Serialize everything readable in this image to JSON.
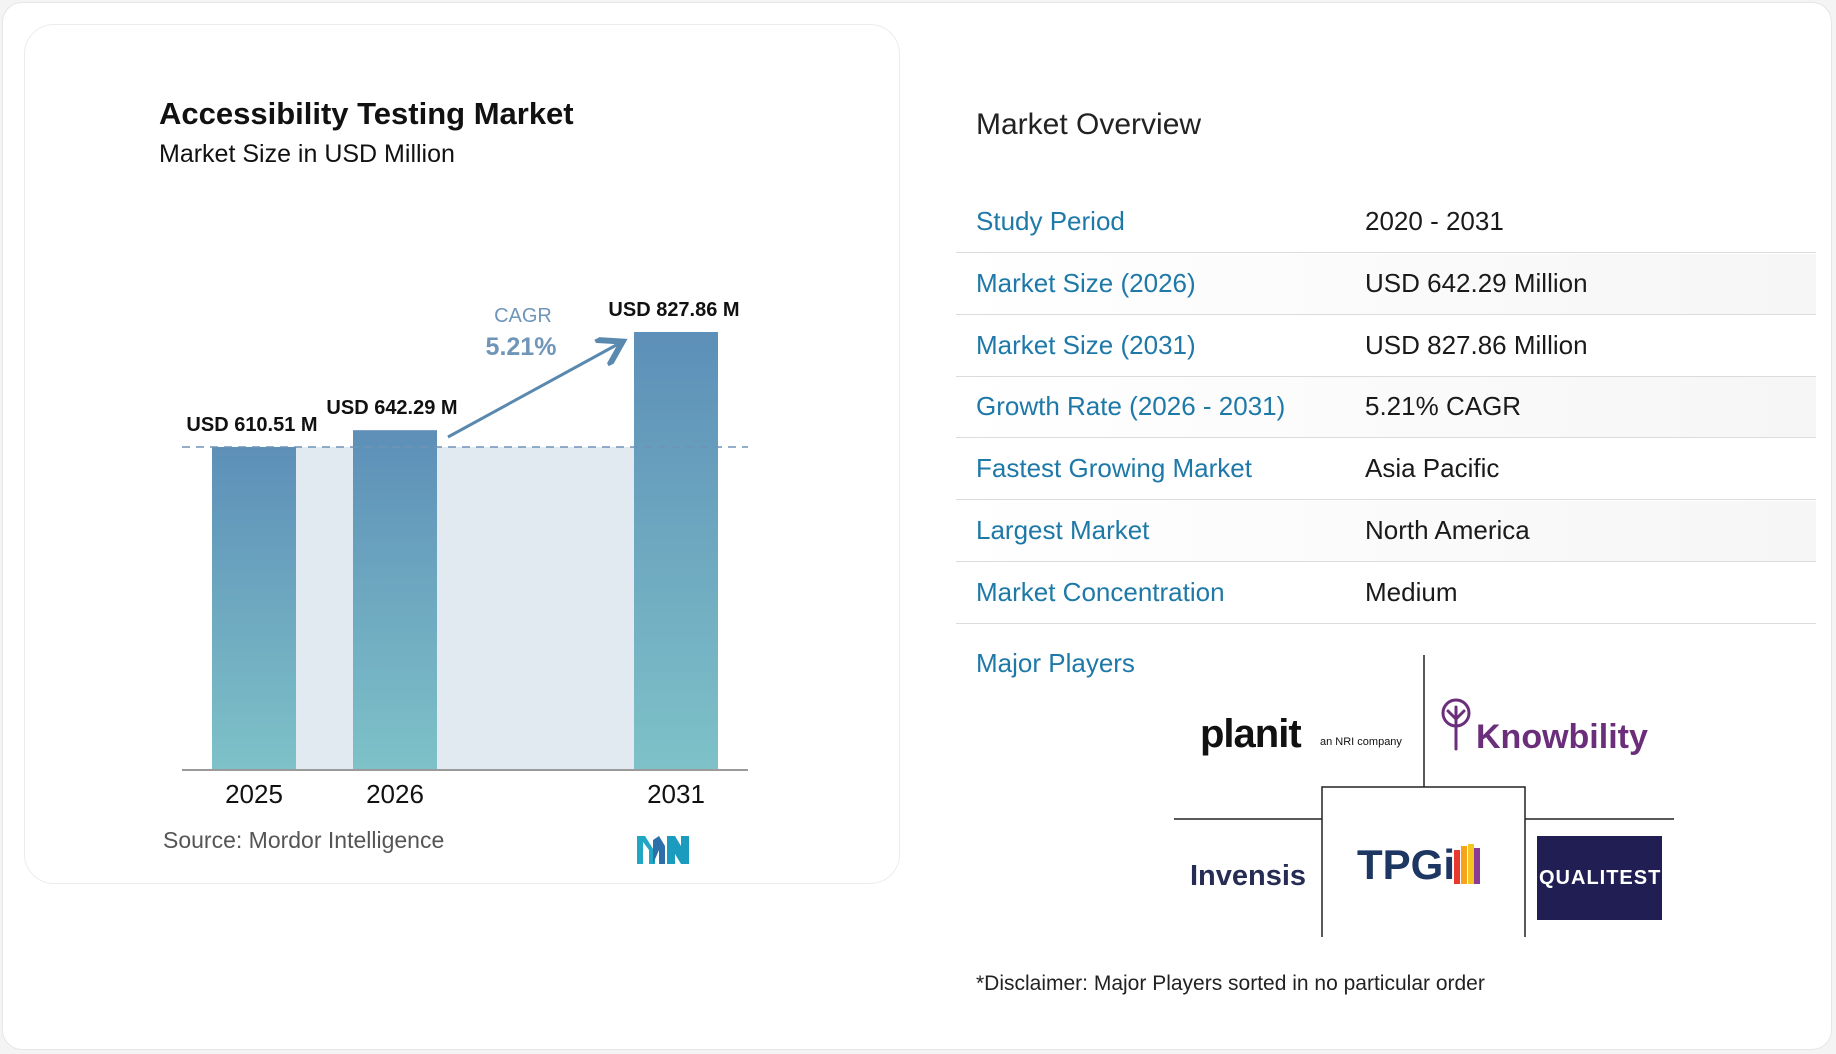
{
  "chart_data": {
    "type": "bar",
    "title": "Accessibility Testing Market",
    "subtitle": "Market Size in USD Million",
    "categories": [
      "2025",
      "2026",
      "2031"
    ],
    "values": [
      610.51,
      642.29,
      827.86
    ],
    "data_labels": [
      "USD 610.51 M",
      "USD 642.29 M",
      "USD 827.86 M"
    ],
    "cagr_label": "CAGR",
    "cagr_value": "5.21%",
    "ylim": [
      0,
      827.86
    ],
    "colors": {
      "bar_top": "#5d8fb8",
      "bar_bottom": "#7ec2c8",
      "band": "#e1e9f1",
      "arrow": "#5a89b0",
      "dashed": "#6f93b5",
      "cagr_text": "#6f96b9"
    }
  },
  "source": "Source:  Mordor Intelligence",
  "logo_icon": "mordor-intelligence-logo",
  "overview": {
    "title": "Market Overview",
    "rows": [
      {
        "label": "Study Period",
        "value": "2020 - 2031"
      },
      {
        "label": "Market Size (2026)",
        "value": "USD 642.29 Million"
      },
      {
        "label": "Market Size (2031)",
        "value": "USD 827.86 Million"
      },
      {
        "label": "Growth Rate (2026 - 2031)",
        "value": "5.21% CAGR"
      },
      {
        "label": "Fastest Growing Market",
        "value": "Asia Pacific"
      },
      {
        "label": "Largest Market",
        "value": "North America"
      },
      {
        "label": "Market Concentration",
        "value": "Medium"
      }
    ],
    "players_label": "Major Players",
    "players": {
      "planit": "planit",
      "planit_sub": "an NRI company",
      "knowbility": "Knowbility",
      "invensis": "Invensis",
      "tpgi": "TPGi",
      "qualitest": "QUALITEST"
    },
    "disclaimer": "*Disclaimer: Major Players sorted in no particular order"
  },
  "colors": {
    "label_blue": "#1e79a8",
    "row_divider": "#dcdcdc"
  }
}
